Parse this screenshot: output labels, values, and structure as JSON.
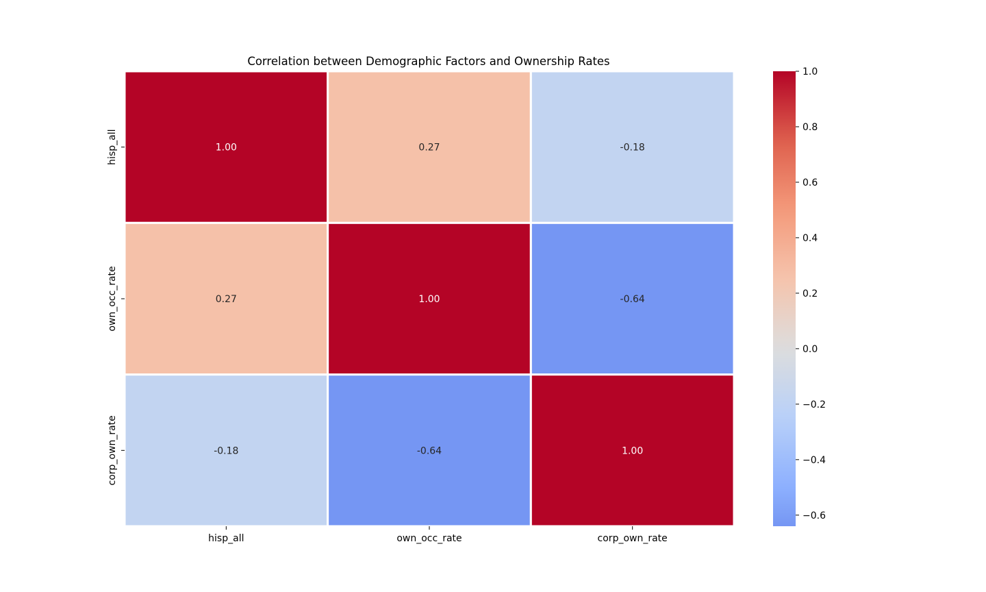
{
  "chart_data": {
    "type": "heatmap",
    "title": "Correlation between Demographic Factors and Ownership Rates",
    "xlabel": "",
    "ylabel": "",
    "x_categories": [
      "hisp_all",
      "own_occ_rate",
      "corp_own_rate"
    ],
    "y_categories": [
      "hisp_all",
      "own_occ_rate",
      "corp_own_rate"
    ],
    "matrix": [
      [
        1.0,
        0.27,
        -0.18
      ],
      [
        0.27,
        1.0,
        -0.64
      ],
      [
        -0.18,
        -0.64,
        1.0
      ]
    ],
    "cell_labels": [
      [
        "1.00",
        "0.27",
        "-0.18"
      ],
      [
        "0.27",
        "1.00",
        "-0.64"
      ],
      [
        "-0.18",
        "-0.64",
        "1.00"
      ]
    ],
    "colormap": "coolwarm",
    "center": 0.0,
    "vmin": -0.64,
    "vmax": 1.0,
    "colorbar": {
      "ticks": [
        1.0,
        0.8,
        0.6,
        0.4,
        0.2,
        0.0,
        -0.2,
        -0.4,
        -0.6
      ],
      "tick_labels": [
        "1.0",
        "0.8",
        "0.6",
        "0.4",
        "0.2",
        "0.0",
        "−0.2",
        "−0.4",
        "−0.6"
      ],
      "placement": "right"
    },
    "cell_border_color": "#ffffff",
    "label_colors": {
      "dark_text": "#262626",
      "light_text": "#ffffff"
    }
  }
}
